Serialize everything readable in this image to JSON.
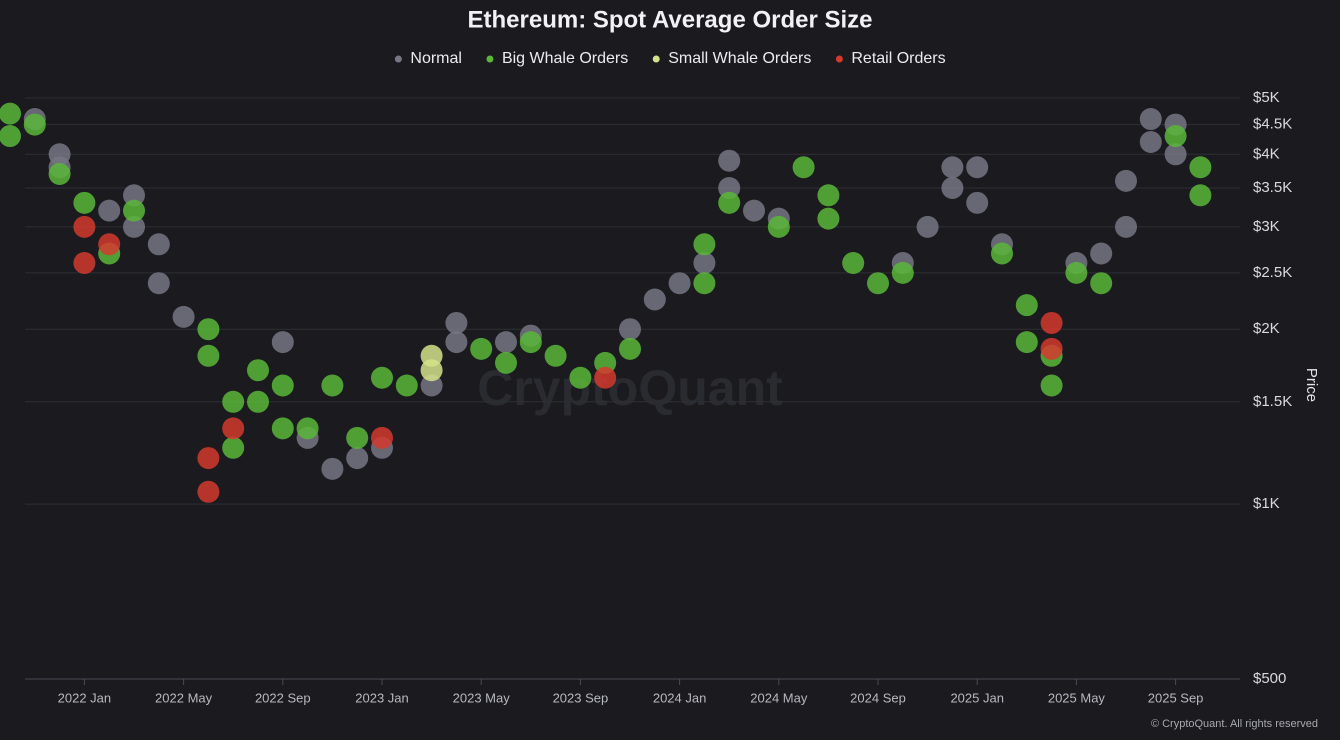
{
  "chart_data": {
    "type": "scatter",
    "title": "Ethereum: Spot Average Order Size",
    "y_label": "Price",
    "watermark": "CryptoQuant",
    "footer": "© CryptoQuant. All rights reserved",
    "log_y": true,
    "grid": true,
    "legend_position": "top",
    "xlim": [
      "2021-10",
      "2025-12"
    ],
    "xticks": [
      {
        "value": "2022-01",
        "label": "2022 Jan"
      },
      {
        "value": "2022-05",
        "label": "2022 May"
      },
      {
        "value": "2022-09",
        "label": "2022 Sep"
      },
      {
        "value": "2023-01",
        "label": "2023 Jan"
      },
      {
        "value": "2023-05",
        "label": "2023 May"
      },
      {
        "value": "2023-09",
        "label": "2023 Sep"
      },
      {
        "value": "2024-01",
        "label": "2024 Jan"
      },
      {
        "value": "2024-05",
        "label": "2024 May"
      },
      {
        "value": "2024-09",
        "label": "2024 Sep"
      },
      {
        "value": "2025-01",
        "label": "2025 Jan"
      },
      {
        "value": "2025-05",
        "label": "2025 May"
      },
      {
        "value": "2025-09",
        "label": "2025 Sep"
      }
    ],
    "ylim": [
      500,
      5000
    ],
    "yticks": [
      {
        "value": 500,
        "label": "$500"
      },
      {
        "value": 1000,
        "label": "$1K"
      },
      {
        "value": 1500,
        "label": "$1.5K"
      },
      {
        "value": 2000,
        "label": "$2K"
      },
      {
        "value": 2500,
        "label": "$2.5K"
      },
      {
        "value": 3000,
        "label": "$3K"
      },
      {
        "value": 3500,
        "label": "$3.5K"
      },
      {
        "value": 4000,
        "label": "$4K"
      },
      {
        "value": 4500,
        "label": "$4.5K"
      },
      {
        "value": 5000,
        "label": "$5K"
      }
    ],
    "series": [
      {
        "name": "Normal",
        "color": "#777684",
        "x": [
          "2021-11",
          "2021-12",
          "2021-12",
          "2022-02",
          "2022-03",
          "2022-03",
          "2022-04",
          "2022-04",
          "2022-05",
          "2022-09",
          "2022-10",
          "2022-11",
          "2022-12",
          "2023-01",
          "2023-03",
          "2023-04",
          "2023-04",
          "2023-06",
          "2023-07",
          "2023-11",
          "2023-12",
          "2024-01",
          "2024-02",
          "2024-03",
          "2024-03",
          "2024-04",
          "2024-05",
          "2024-10",
          "2024-11",
          "2024-12",
          "2024-12",
          "2025-01",
          "2025-01",
          "2025-02",
          "2025-05",
          "2025-06",
          "2025-07",
          "2025-07",
          "2025-08",
          "2025-08",
          "2025-09",
          "2025-09"
        ],
        "values": [
          4600,
          4000,
          3800,
          3200,
          3400,
          3000,
          2800,
          2400,
          2100,
          1900,
          1300,
          1150,
          1200,
          1250,
          1600,
          2050,
          1900,
          1900,
          1950,
          2000,
          2250,
          2400,
          2600,
          3900,
          3500,
          3200,
          3100,
          2600,
          3000,
          3800,
          3500,
          3800,
          3300,
          2800,
          2600,
          2700,
          3000,
          3600,
          4200,
          4600,
          4500,
          4000
        ]
      },
      {
        "name": "Big Whale Orders",
        "color": "#5bb73a",
        "x": [
          "2021-10",
          "2021-10",
          "2021-11",
          "2021-12",
          "2022-01",
          "2022-02",
          "2022-03",
          "2022-06",
          "2022-06",
          "2022-07",
          "2022-07",
          "2022-08",
          "2022-08",
          "2022-09",
          "2022-09",
          "2022-10",
          "2022-11",
          "2022-12",
          "2023-01",
          "2023-02",
          "2023-05",
          "2023-06",
          "2023-07",
          "2023-08",
          "2023-09",
          "2023-10",
          "2023-11",
          "2024-02",
          "2024-02",
          "2024-03",
          "2024-05",
          "2024-06",
          "2024-07",
          "2024-07",
          "2024-08",
          "2024-09",
          "2024-10",
          "2025-02",
          "2025-03",
          "2025-03",
          "2025-04",
          "2025-04",
          "2025-05",
          "2025-06",
          "2025-09",
          "2025-10",
          "2025-10"
        ],
        "values": [
          4300,
          4700,
          4500,
          3700,
          3300,
          2700,
          3200,
          2000,
          1800,
          1500,
          1250,
          1700,
          1500,
          1600,
          1350,
          1350,
          1600,
          1300,
          1650,
          1600,
          1850,
          1750,
          1900,
          1800,
          1650,
          1750,
          1850,
          2400,
          2800,
          3300,
          3000,
          3800,
          3400,
          3100,
          2600,
          2400,
          2500,
          2700,
          2200,
          1900,
          1600,
          1800,
          2500,
          2400,
          4300,
          3800,
          3400
        ]
      },
      {
        "name": "Small Whale Orders",
        "color": "#d3e38a",
        "x": [
          "2023-03",
          "2023-03"
        ],
        "values": [
          1800,
          1700
        ]
      },
      {
        "name": "Retail Orders",
        "color": "#d4392e",
        "x": [
          "2022-01",
          "2022-01",
          "2022-02",
          "2022-06",
          "2022-06",
          "2022-07",
          "2023-01",
          "2023-10",
          "2025-04",
          "2025-04"
        ],
        "values": [
          3000,
          2600,
          2800,
          1200,
          1050,
          1350,
          1300,
          1650,
          2050,
          1850
        ]
      }
    ]
  }
}
